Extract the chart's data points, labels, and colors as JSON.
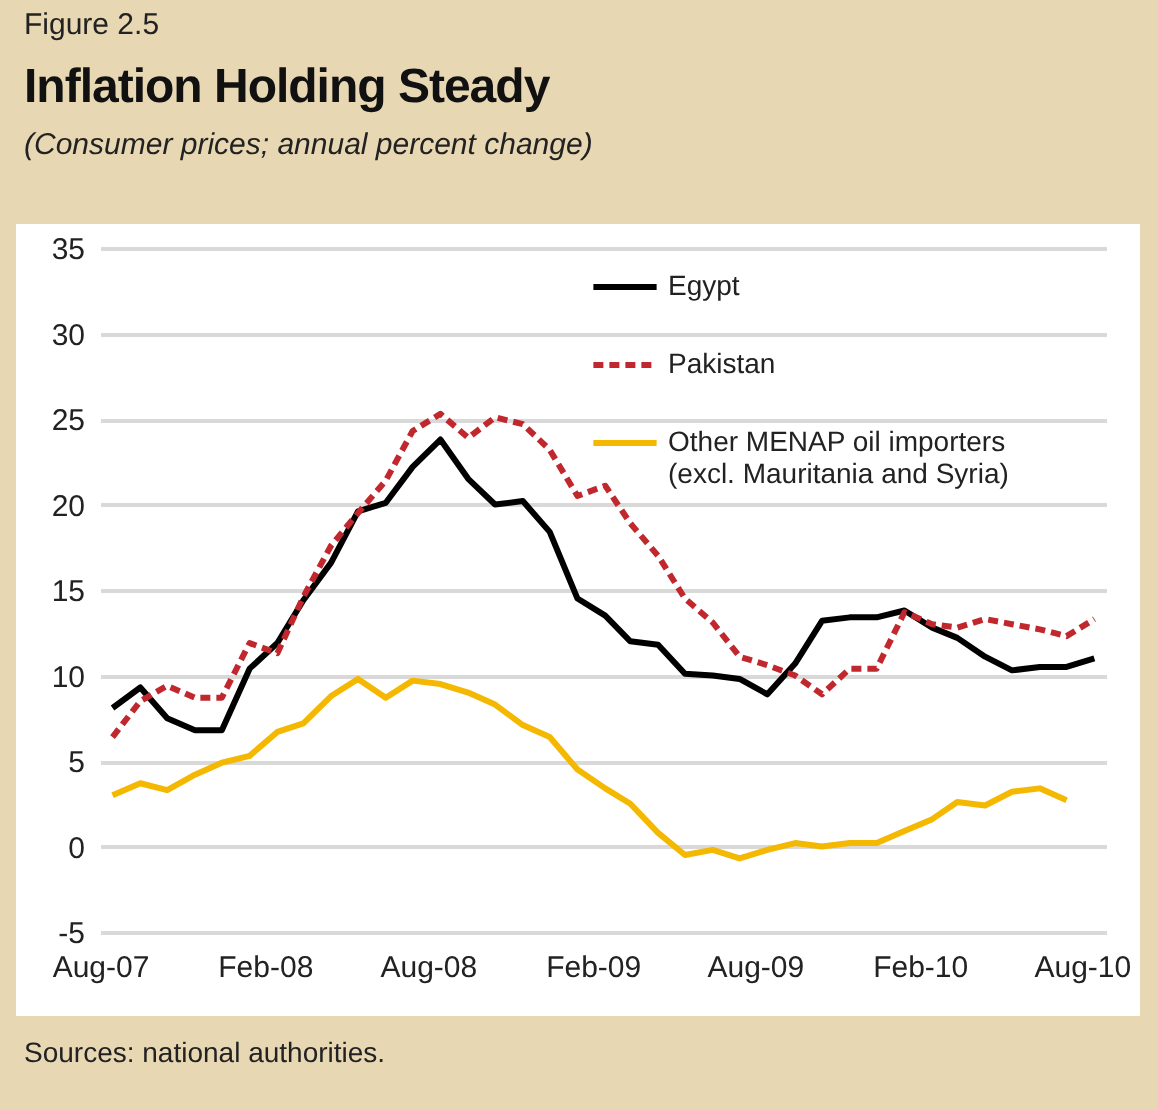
{
  "chart_data": {
    "type": "line",
    "title": "Inflation Holding Steady",
    "subtitle": "(Consumer prices; annual percent change)",
    "annotations": [
      "Figure 2.5",
      "Sources: national authorities."
    ],
    "x": [
      "2007-08-15",
      "2007-09-15",
      "2007-10-15",
      "2007-11-15",
      "2007-12-15",
      "2008-01-15",
      "2008-02-15",
      "2008-03-15",
      "2008-04-15",
      "2008-05-15",
      "2008-06-15",
      "2008-07-15",
      "2008-08-15",
      "2008-09-15",
      "2008-10-15",
      "2008-11-15",
      "2008-12-15",
      "2009-01-15",
      "2009-02-15",
      "2009-03-15",
      "2009-04-15",
      "2009-05-15",
      "2009-06-15",
      "2009-07-15",
      "2009-08-15",
      "2009-09-15",
      "2009-10-15",
      "2009-11-15",
      "2009-12-15",
      "2010-01-15",
      "2010-02-15",
      "2010-03-15",
      "2010-04-15",
      "2010-05-15",
      "2010-06-15",
      "2010-07-15",
      "2010-08-15"
    ],
    "series": [
      {
        "name": "Egypt",
        "color": "#000000",
        "line_style": "solid",
        "values": [
          8.1,
          9.3,
          7.5,
          6.8,
          6.8,
          10.4,
          11.9,
          14.4,
          16.6,
          19.6,
          20.1,
          22.2,
          23.8,
          21.5,
          20.0,
          20.2,
          18.4,
          14.5,
          13.5,
          12.0,
          11.8,
          10.1,
          10.0,
          9.8,
          8.9,
          10.7,
          13.2,
          13.4,
          13.4,
          13.8,
          12.8,
          12.2,
          11.1,
          10.3,
          10.5,
          10.5,
          11.0
        ]
      },
      {
        "name": "Pakistan",
        "color": "#c0282e",
        "line_style": "dashed",
        "values": [
          6.4,
          8.5,
          9.4,
          8.7,
          8.7,
          11.9,
          11.3,
          14.6,
          17.6,
          19.5,
          21.4,
          24.3,
          25.3,
          23.9,
          25.1,
          24.7,
          23.2,
          20.5,
          21.1,
          18.9,
          17.0,
          14.5,
          13.1,
          11.1,
          10.6,
          10.0,
          8.9,
          10.4,
          10.4,
          13.7,
          13.0,
          12.8,
          13.3,
          13.0,
          12.7,
          12.3,
          13.3
        ]
      },
      {
        "name": "Other MENAP oil importers (excl. Mauritania and Syria)",
        "color": "#f5b800",
        "line_style": "solid",
        "values": [
          3.0,
          3.7,
          3.3,
          4.2,
          4.9,
          5.3,
          6.7,
          7.2,
          8.8,
          9.8,
          8.7,
          9.7,
          9.5,
          9.0,
          8.3,
          7.1,
          6.4,
          4.5,
          3.4,
          2.5,
          0.8,
          -0.5,
          -0.2,
          -0.7,
          -0.2,
          0.2,
          0.0,
          0.2,
          0.2,
          0.9,
          1.6,
          2.6,
          2.4,
          3.2,
          3.4,
          2.7,
          null
        ]
      }
    ],
    "xlim": [
      "2007-08-01",
      "2010-08-28"
    ],
    "xticks": [
      {
        "value": "2007-08-01",
        "label": "Aug-07"
      },
      {
        "value": "2008-02-01",
        "label": "Feb-08"
      },
      {
        "value": "2008-08-01",
        "label": "Aug-08"
      },
      {
        "value": "2009-02-01",
        "label": "Feb-09"
      },
      {
        "value": "2009-08-01",
        "label": "Aug-09"
      },
      {
        "value": "2010-02-01",
        "label": "Feb-10"
      },
      {
        "value": "2010-08-01",
        "label": "Aug-10"
      }
    ],
    "ylim": [
      -5,
      35
    ],
    "yticks": [
      -5,
      0,
      5,
      10,
      15,
      20,
      25,
      30,
      35
    ],
    "grid": "y",
    "legend": "top right"
  }
}
